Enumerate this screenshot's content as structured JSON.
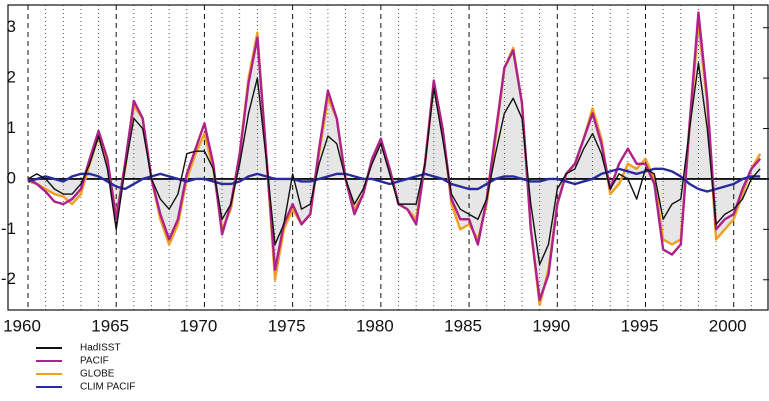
{
  "chart_data": {
    "type": "line",
    "x": [
      1960,
      1960.5,
      1961,
      1961.5,
      1962,
      1962.5,
      1963,
      1963.5,
      1964,
      1964.5,
      1965,
      1965.5,
      1966,
      1966.5,
      1967,
      1967.5,
      1968,
      1968.5,
      1969,
      1969.5,
      1970,
      1970.5,
      1971,
      1971.5,
      1972,
      1972.5,
      1973,
      1973.5,
      1974,
      1974.5,
      1975,
      1975.5,
      1976,
      1976.5,
      1977,
      1977.5,
      1978,
      1978.5,
      1979,
      1979.5,
      1980,
      1980.5,
      1981,
      1981.5,
      1982,
      1982.5,
      1983,
      1983.5,
      1984,
      1984.5,
      1985,
      1985.5,
      1986,
      1986.5,
      1987,
      1987.5,
      1988,
      1988.5,
      1989,
      1989.5,
      1990,
      1990.5,
      1991,
      1991.5,
      1992,
      1992.5,
      1993,
      1993.5,
      1994,
      1994.5,
      1995,
      1995.5,
      1996,
      1996.5,
      1997,
      1997.5,
      1998,
      1998.5,
      1999,
      1999.5,
      2000,
      2000.5,
      2001,
      2001.5
    ],
    "series": [
      {
        "name": "HadISST",
        "color": "#111111",
        "values": [
          0.0,
          0.1,
          0.0,
          -0.2,
          -0.3,
          -0.3,
          -0.1,
          0.3,
          0.85,
          0.2,
          -1.0,
          0.2,
          1.2,
          1.0,
          0.0,
          -0.4,
          -0.6,
          -0.3,
          0.5,
          0.55,
          0.55,
          0.2,
          -0.8,
          -0.5,
          0.3,
          1.3,
          2.0,
          0.4,
          -1.3,
          -0.9,
          0.1,
          -0.6,
          -0.5,
          0.3,
          0.85,
          0.7,
          0.0,
          -0.5,
          -0.2,
          0.3,
          0.7,
          0.1,
          -0.5,
          -0.5,
          -0.5,
          0.3,
          1.8,
          0.8,
          -0.3,
          -0.6,
          -0.7,
          -0.8,
          -0.4,
          0.5,
          1.3,
          1.6,
          1.2,
          -0.5,
          -1.7,
          -1.3,
          -0.2,
          0.1,
          0.2,
          0.6,
          0.9,
          0.5,
          -0.2,
          0.1,
          0.0,
          -0.4,
          0.2,
          0.1,
          -0.8,
          -0.5,
          -0.4,
          1.0,
          2.3,
          1.0,
          -0.9,
          -0.7,
          -0.6,
          -0.4,
          0.0,
          0.2
        ]
      },
      {
        "name": "PACIF",
        "color": "#b0208a",
        "values": [
          0.0,
          -0.1,
          -0.25,
          -0.45,
          -0.5,
          -0.4,
          -0.2,
          0.4,
          0.95,
          0.4,
          -0.8,
          0.3,
          1.55,
          1.2,
          0.0,
          -0.7,
          -1.2,
          -0.8,
          0.1,
          0.6,
          1.1,
          0.3,
          -1.1,
          -0.5,
          0.5,
          1.9,
          2.8,
          0.5,
          -1.8,
          -0.9,
          -0.5,
          -0.9,
          -0.7,
          0.6,
          1.75,
          1.2,
          0.0,
          -0.7,
          -0.3,
          0.4,
          0.8,
          0.2,
          -0.5,
          -0.6,
          -0.9,
          0.3,
          1.95,
          1.0,
          -0.4,
          -0.8,
          -0.8,
          -1.3,
          -0.4,
          0.9,
          2.2,
          2.55,
          1.5,
          -1.0,
          -2.4,
          -1.9,
          -0.5,
          0.1,
          0.3,
          0.8,
          1.3,
          0.7,
          -0.2,
          0.3,
          0.6,
          0.3,
          0.3,
          -0.1,
          -1.4,
          -1.5,
          -1.3,
          1.1,
          3.3,
          1.6,
          -1.0,
          -0.8,
          -0.7,
          -0.2,
          0.2,
          0.4
        ]
      },
      {
        "name": "GLOBE",
        "color": "#f0a020",
        "values": [
          -0.05,
          -0.1,
          -0.2,
          -0.3,
          -0.35,
          -0.5,
          -0.3,
          0.3,
          0.85,
          0.3,
          -0.7,
          0.2,
          1.45,
          1.2,
          0.0,
          -0.8,
          -1.3,
          -0.9,
          0.0,
          0.5,
          0.9,
          0.2,
          -1.0,
          -0.6,
          0.5,
          2.0,
          2.9,
          0.5,
          -2.0,
          -1.0,
          -0.6,
          -0.9,
          -0.7,
          0.5,
          1.6,
          1.2,
          0.0,
          -0.6,
          -0.3,
          0.4,
          0.75,
          0.2,
          -0.5,
          -0.6,
          -0.8,
          0.3,
          1.9,
          1.0,
          -0.5,
          -1.0,
          -0.9,
          -1.2,
          -0.5,
          0.8,
          2.2,
          2.6,
          1.5,
          -1.0,
          -2.5,
          -1.8,
          -0.5,
          0.1,
          0.3,
          0.8,
          1.4,
          0.8,
          -0.3,
          -0.1,
          0.3,
          0.2,
          0.4,
          0.0,
          -1.2,
          -1.3,
          -1.2,
          1.0,
          3.1,
          1.5,
          -1.2,
          -1.0,
          -0.8,
          -0.3,
          0.2,
          0.5
        ]
      },
      {
        "name": "CLIM PACIF",
        "color": "#2a2aa0",
        "values": [
          -0.05,
          0.0,
          0.05,
          0.0,
          -0.05,
          0.05,
          0.1,
          0.1,
          0.05,
          -0.05,
          -0.15,
          -0.2,
          -0.1,
          0.0,
          0.05,
          0.1,
          0.05,
          0.0,
          -0.05,
          0.0,
          0.0,
          -0.05,
          -0.1,
          -0.1,
          -0.05,
          0.05,
          0.1,
          0.05,
          0.0,
          0.0,
          0.0,
          -0.05,
          -0.05,
          0.0,
          0.05,
          0.1,
          0.1,
          0.05,
          0.0,
          0.0,
          -0.05,
          -0.1,
          -0.05,
          0.0,
          0.05,
          0.1,
          0.05,
          0.0,
          -0.1,
          -0.15,
          -0.2,
          -0.2,
          -0.1,
          0.0,
          0.05,
          0.05,
          0.0,
          -0.05,
          -0.05,
          0.0,
          0.0,
          -0.05,
          -0.1,
          -0.05,
          0.0,
          0.1,
          0.15,
          0.2,
          0.15,
          0.1,
          0.15,
          0.2,
          0.2,
          0.15,
          0.05,
          -0.1,
          -0.2,
          -0.25,
          -0.2,
          -0.15,
          -0.1,
          0.0,
          0.05,
          0.05
        ]
      }
    ],
    "xlim": [
      1960,
      2002
    ],
    "ylim": [
      -2.6,
      3.45
    ],
    "xticks": [
      1960,
      1965,
      1970,
      1975,
      1980,
      1985,
      1990,
      1995,
      2000
    ],
    "xminorticks": [
      1961,
      1962,
      1963,
      1964,
      1966,
      1967,
      1968,
      1969,
      1971,
      1972,
      1973,
      1974,
      1976,
      1977,
      1978,
      1979,
      1981,
      1982,
      1983,
      1984,
      1986,
      1987,
      1988,
      1989,
      1991,
      1992,
      1993,
      1994,
      1996,
      1997,
      1998,
      1999,
      2001
    ],
    "yticks": [
      -2,
      -1,
      0,
      1,
      2,
      3
    ],
    "fill_series": 2,
    "fill_color": "#e6e6e6"
  }
}
